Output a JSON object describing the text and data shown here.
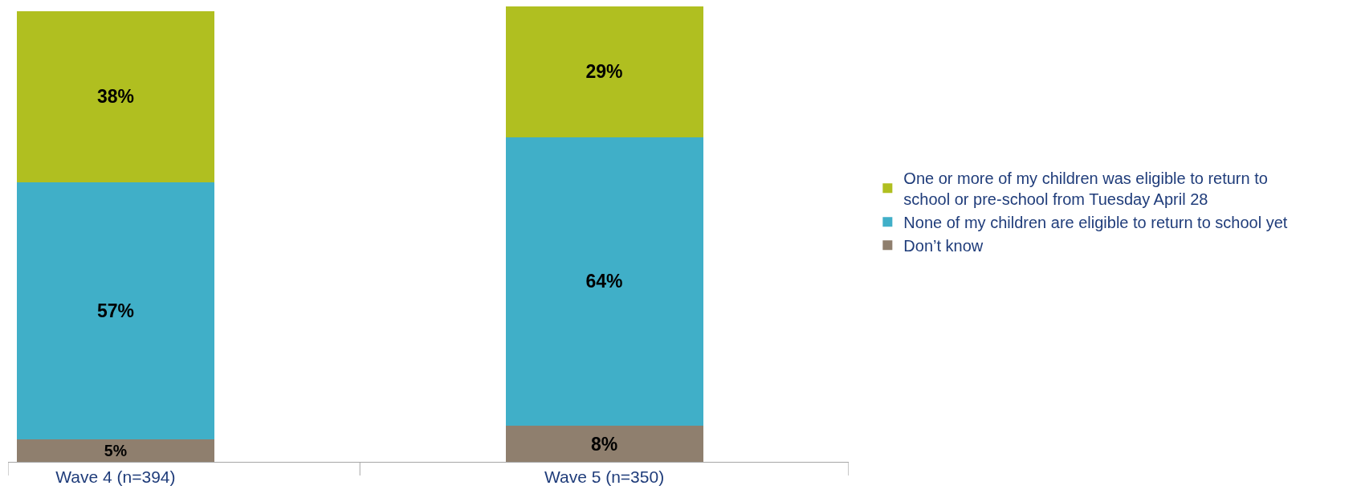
{
  "chart_data": {
    "type": "bar",
    "stacked": true,
    "legend": "right",
    "tick_labels": "x",
    "categories": [
      "Wave 4 (n=394)",
      "Wave 5 (n=350)"
    ],
    "series": [
      {
        "name": "Don’t know",
        "color": "#8f7f6e",
        "values": [
          5,
          8
        ],
        "value_labels": [
          "5%",
          "8%"
        ]
      },
      {
        "name": "None of my children are eligible to return to school yet",
        "color": "#40afc8",
        "values": [
          57,
          64
        ],
        "value_labels": [
          "57%",
          "64%"
        ]
      },
      {
        "name": "One or more of my children was eligible to return to school or pre-school from Tuesday April 28",
        "color": "#b0bf20",
        "values": [
          38,
          29
        ],
        "value_labels": [
          "38%",
          "29%"
        ]
      }
    ]
  }
}
